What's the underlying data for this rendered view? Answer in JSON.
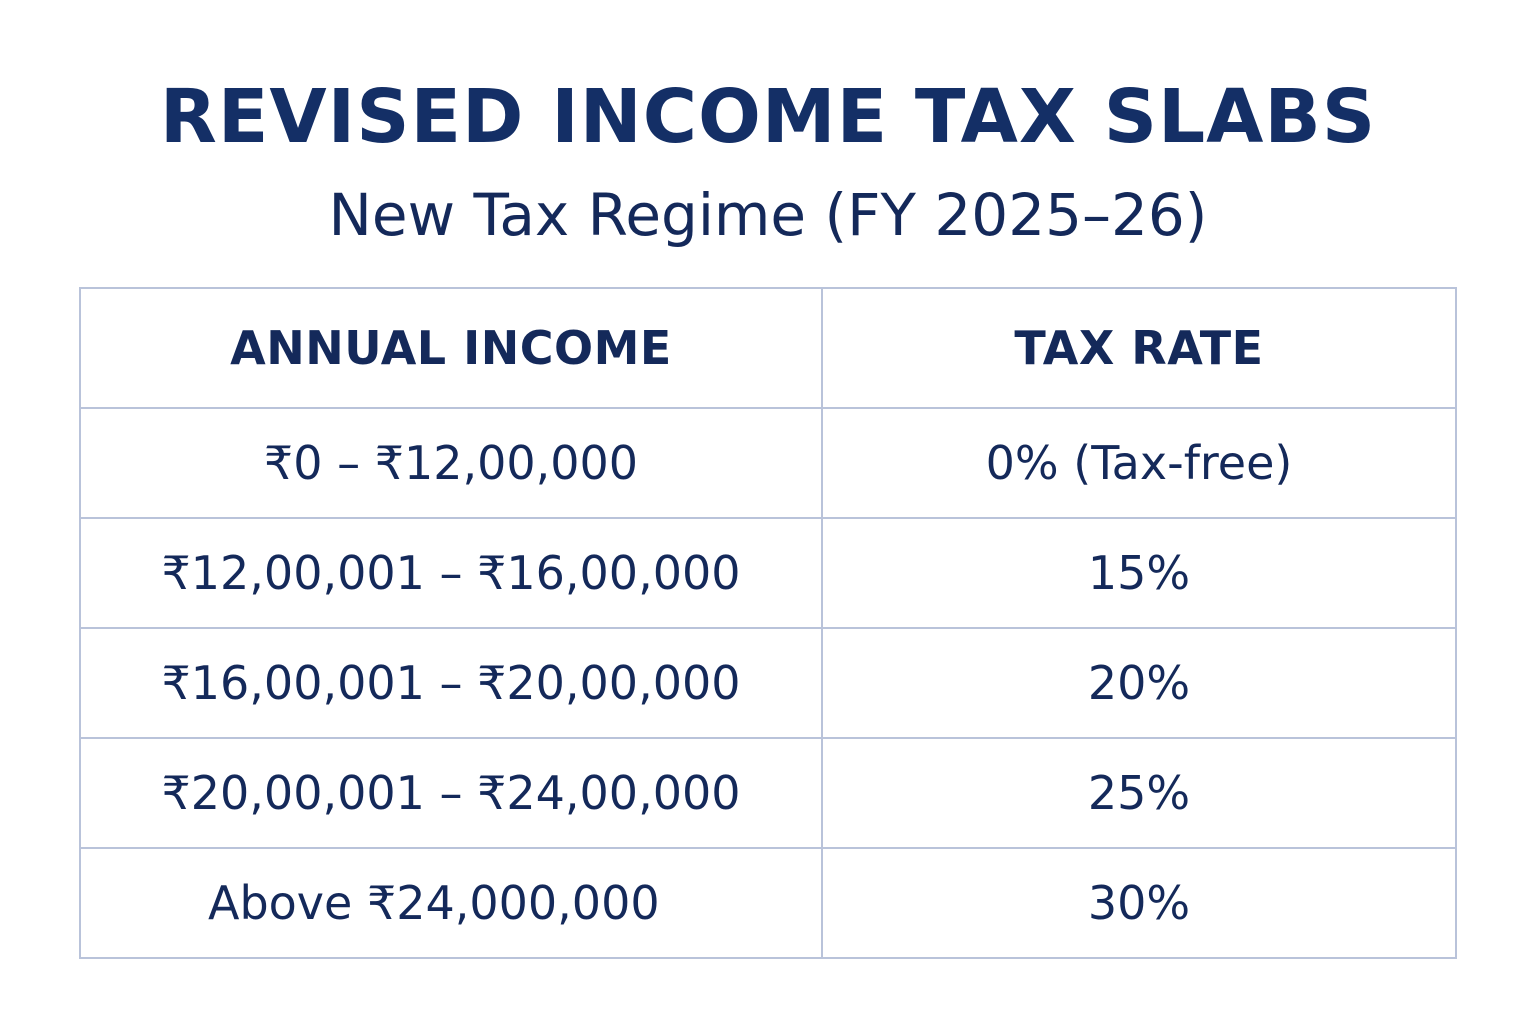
{
  "header": {
    "title": "REVISED INCOME TAX SLABS",
    "subtitle": "New Tax Regime (FY 2025–26)"
  },
  "table": {
    "columns": [
      "ANNUAL INCOME",
      "TAX RATE"
    ],
    "rows": [
      {
        "income": "₹0 – ₹12,00,000",
        "rate": "0% (Tax-free)"
      },
      {
        "income": "₹12,00,001 – ₹16,00,000",
        "rate": "15%"
      },
      {
        "income": "₹16,00,001 – ₹20,00,000",
        "rate": "20%"
      },
      {
        "income": "₹20,00,001 – ₹24,00,000",
        "rate": "25%"
      },
      {
        "income": "Above ₹24,000,000",
        "rate": "30%"
      }
    ]
  },
  "colors": {
    "text": "#14295a",
    "title": "#142f66",
    "border": "#b9c3da",
    "background": "#ffffff"
  }
}
